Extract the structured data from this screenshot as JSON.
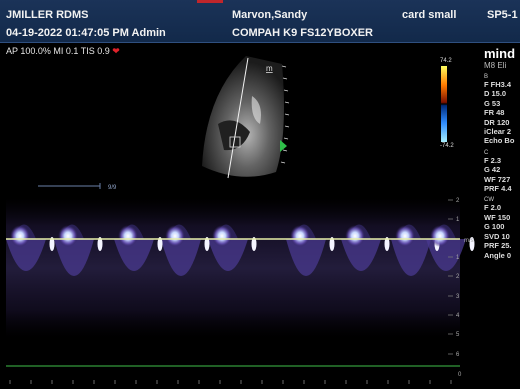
{
  "header": {
    "operator": "JMILLER RDMS",
    "datetime": "04-19-2022 01:47:05 PM  Admin",
    "patient_name": "Marvon,Sandy",
    "patient_id": "COMPAH K9 FS12YBOXER",
    "preset": "card small",
    "probe": "SP5-1"
  },
  "status": {
    "text": "AP 100.0%  MI 0.1  TIS 0.9",
    "icon": "heart-icon"
  },
  "colorbar": {
    "max": "74.2",
    "min": "-74.2"
  },
  "image": {
    "marker": "m"
  },
  "brand": {
    "name": "mind",
    "model": "M8 Eli"
  },
  "params": {
    "b_header": "B",
    "b": [
      "F FH3.4",
      "D 15.0",
      "G 53",
      "FR 48",
      "DR 120",
      "iClear 2",
      "Echo Bo"
    ],
    "c_header": "C",
    "c": [
      "F 2.3",
      "G 42",
      "WF 727",
      "PRF 4.4"
    ],
    "cw_header": "CW",
    "cw": [
      "F 2.0",
      "WF 150",
      "G 100",
      "SVD 10",
      "PRF 25.",
      "Angle 0"
    ]
  },
  "spectral": {
    "sweep_label": "9/9",
    "scale_unit": "m/s",
    "scale_labels": [
      "2",
      "1",
      "1",
      "2",
      "3",
      "4",
      "5",
      "6"
    ],
    "baseline_label": "0"
  },
  "colors": {
    "header_bg": "#1b3358",
    "accent_red": "#c0262b",
    "baseline": "#e8f0a8"
  }
}
